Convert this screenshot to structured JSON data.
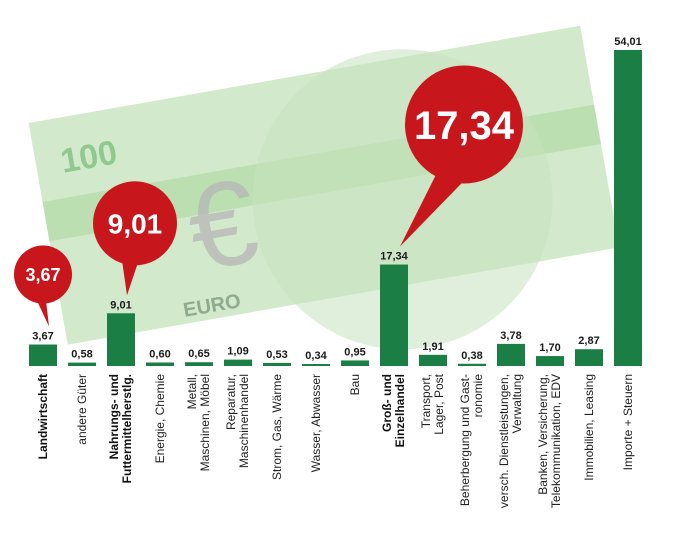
{
  "colors": {
    "bar": "#1b7f45",
    "bubble": "#c8161d",
    "banknote": "#cfe6c7",
    "banknote_band": "#b9dcae"
  },
  "banknote": {
    "denomination": "100",
    "currency": "EURO",
    "symbol": "€"
  },
  "callouts": [
    {
      "category_index": 0,
      "text": "3,67"
    },
    {
      "category_index": 2,
      "text": "9,01"
    },
    {
      "category_index": 9,
      "text": "17,34"
    }
  ],
  "chart_data": {
    "type": "bar",
    "categories": [
      "Landwirtschaft",
      "andere Güter",
      "Nahrungs- und Futtermittelherstlg.",
      "Energie, Chemie",
      "Metall, Maschinen, Möbel",
      "Reparatur, Maschinenhandel",
      "Strom, Gas, Wärme",
      "Wasser, Abwasser",
      "Bau",
      "Groß- und Einzelhandel",
      "Transport, Lager, Post",
      "Beherbergung und Gastronomie",
      "versch. Dienstleistungen, Verwaltung",
      "Banken, Versicherung, Telekommunikation, EDV",
      "Immobilien, Leasing",
      "Importe + Steuern"
    ],
    "category_lines": [
      [
        "Landwirtschaft"
      ],
      [
        "andere Güter"
      ],
      [
        "Nahrungs- und",
        "Futtermittelherstlg."
      ],
      [
        "Energie, Chemie"
      ],
      [
        "Metall,",
        "Maschinen, Möbel"
      ],
      [
        "Reparatur,",
        "Maschinenhandel"
      ],
      [
        "Strom, Gas, Wärme"
      ],
      [
        "Wasser, Abwasser"
      ],
      [
        "Bau"
      ],
      [
        "Groß- und",
        "Einzelhandel"
      ],
      [
        "Transport,",
        "Lager, Post"
      ],
      [
        "Beherbergung und Gast-",
        "ronomie"
      ],
      [
        "versch. Dienstleistungen,",
        "Verwaltung"
      ],
      [
        "Banken, Versicherung,",
        "Telekommunikation, EDV"
      ],
      [
        "Immobilien, Leasing"
      ],
      [
        "Importe + Steuern"
      ]
    ],
    "bold_categories": [
      0,
      2,
      9
    ],
    "values": [
      3.67,
      0.58,
      9.01,
      0.6,
      0.65,
      1.09,
      0.53,
      0.34,
      0.95,
      17.34,
      1.91,
      0.38,
      3.78,
      1.7,
      2.87,
      54.01
    ],
    "value_labels": [
      "3,67",
      "0,58",
      "9,01",
      "0,60",
      "0,65",
      "1,09",
      "0,53",
      "0,34",
      "0,95",
      "17,34",
      "1,91",
      "0,38",
      "3,78",
      "1,70",
      "2,87",
      "54,01"
    ],
    "ylim": [
      0,
      54.01
    ],
    "grid": false,
    "title": "",
    "xlabel": "",
    "ylabel": ""
  }
}
